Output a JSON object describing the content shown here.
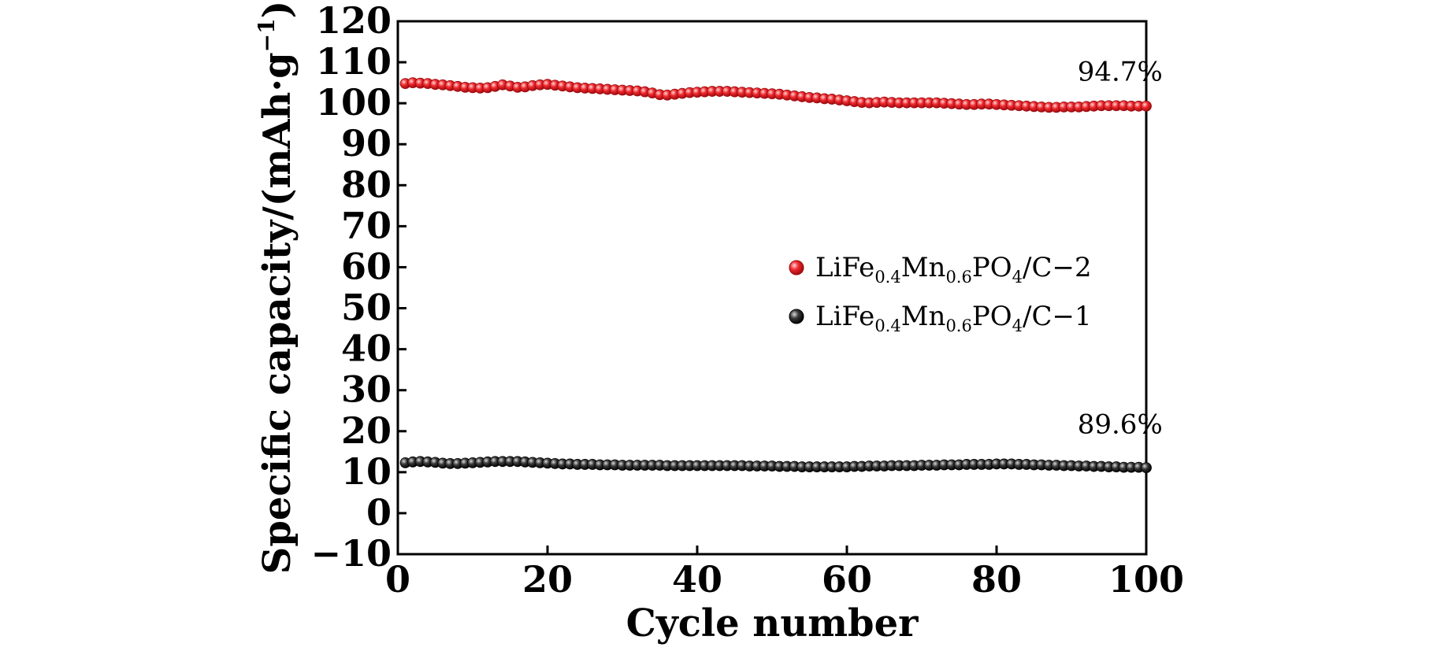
{
  "chart_data": {
    "type": "scatter",
    "xlabel": "Cycle number",
    "ylabel": {
      "main": "Specific capacity/(mAh",
      "dot": "·",
      "g": "g",
      "sup": "−1",
      "close": ")"
    },
    "xlim": [
      0,
      100
    ],
    "ylim": [
      -10,
      120
    ],
    "xticks": [
      "0",
      "20",
      "40",
      "60",
      "80",
      "100"
    ],
    "yticks": [
      "−10",
      "0",
      "10",
      "20",
      "30",
      "40",
      "50",
      "60",
      "70",
      "80",
      "90",
      "100",
      "110",
      "120"
    ],
    "grid": false,
    "legend_position": "right-middle",
    "series": [
      {
        "legend": {
          "a": "LiFe",
          "b": "0.4",
          "c": "Mn",
          "d": "0.6",
          "e": "PO",
          "f": "4",
          "g": "/C−2"
        },
        "color": "#e8151b",
        "x": [
          1,
          2,
          3,
          4,
          5,
          6,
          7,
          8,
          9,
          10,
          11,
          12,
          13,
          14,
          15,
          16,
          17,
          18,
          19,
          20,
          21,
          22,
          23,
          24,
          25,
          26,
          27,
          28,
          29,
          30,
          31,
          32,
          33,
          34,
          35,
          36,
          37,
          38,
          39,
          40,
          41,
          42,
          43,
          44,
          45,
          46,
          47,
          48,
          49,
          50,
          51,
          52,
          53,
          54,
          55,
          56,
          57,
          58,
          59,
          60,
          61,
          62,
          63,
          64,
          65,
          66,
          67,
          68,
          69,
          70,
          71,
          72,
          73,
          74,
          75,
          76,
          77,
          78,
          79,
          80,
          81,
          82,
          83,
          84,
          85,
          86,
          87,
          88,
          89,
          90,
          91,
          92,
          93,
          94,
          95,
          96,
          97,
          98,
          99,
          100
        ],
        "y": [
          104.8,
          105.0,
          104.9,
          104.8,
          104.6,
          104.5,
          104.3,
          104.1,
          103.9,
          103.8,
          103.7,
          103.8,
          104.1,
          104.5,
          104.2,
          103.9,
          104.0,
          104.3,
          104.5,
          104.6,
          104.4,
          104.2,
          104.0,
          103.8,
          103.7,
          103.6,
          103.5,
          103.4,
          103.3,
          103.2,
          103.1,
          103.0,
          102.8,
          102.5,
          102.1,
          102.0,
          102.2,
          102.4,
          102.6,
          102.7,
          102.8,
          102.9,
          102.9,
          102.9,
          102.8,
          102.7,
          102.6,
          102.5,
          102.4,
          102.3,
          102.2,
          102.0,
          101.8,
          101.6,
          101.4,
          101.3,
          101.1,
          101.0,
          100.8,
          100.6,
          100.4,
          100.2,
          100.1,
          100.2,
          100.3,
          100.2,
          100.1,
          100.1,
          100.1,
          100.1,
          100.1,
          100.1,
          100.0,
          99.9,
          99.8,
          99.7,
          99.7,
          99.8,
          99.8,
          99.7,
          99.6,
          99.5,
          99.4,
          99.3,
          99.2,
          99.1,
          99.0,
          99.0,
          99.1,
          99.1,
          99.1,
          99.2,
          99.3,
          99.4,
          99.4,
          99.4,
          99.4,
          99.3,
          99.3,
          99.3
        ]
      },
      {
        "legend": {
          "a": "LiFe",
          "b": "0.4",
          "c": "Mn",
          "d": "0.6",
          "e": "PO",
          "f": "4",
          "g": "/C−1"
        },
        "color": "#1a1a1a",
        "x": [
          1,
          2,
          3,
          4,
          5,
          6,
          7,
          8,
          9,
          10,
          11,
          12,
          13,
          14,
          15,
          16,
          17,
          18,
          19,
          20,
          21,
          22,
          23,
          24,
          25,
          26,
          27,
          28,
          29,
          30,
          31,
          32,
          33,
          34,
          35,
          36,
          37,
          38,
          39,
          40,
          41,
          42,
          43,
          44,
          45,
          46,
          47,
          48,
          49,
          50,
          51,
          52,
          53,
          54,
          55,
          56,
          57,
          58,
          59,
          60,
          61,
          62,
          63,
          64,
          65,
          66,
          67,
          68,
          69,
          70,
          71,
          72,
          73,
          74,
          75,
          76,
          77,
          78,
          79,
          80,
          81,
          82,
          83,
          84,
          85,
          86,
          87,
          88,
          89,
          90,
          91,
          92,
          93,
          94,
          95,
          96,
          97,
          98,
          99,
          100
        ],
        "y": [
          12.3,
          12.5,
          12.6,
          12.5,
          12.4,
          12.2,
          12.1,
          12.1,
          12.2,
          12.3,
          12.4,
          12.5,
          12.6,
          12.6,
          12.6,
          12.6,
          12.5,
          12.4,
          12.3,
          12.2,
          12.1,
          12.0,
          12.0,
          11.9,
          11.9,
          11.9,
          11.8,
          11.8,
          11.8,
          11.7,
          11.7,
          11.7,
          11.7,
          11.7,
          11.7,
          11.6,
          11.6,
          11.6,
          11.6,
          11.6,
          11.6,
          11.6,
          11.6,
          11.6,
          11.6,
          11.6,
          11.5,
          11.5,
          11.5,
          11.5,
          11.4,
          11.4,
          11.4,
          11.3,
          11.3,
          11.3,
          11.3,
          11.3,
          11.3,
          11.3,
          11.4,
          11.4,
          11.5,
          11.5,
          11.5,
          11.6,
          11.6,
          11.6,
          11.6,
          11.7,
          11.7,
          11.7,
          11.8,
          11.8,
          11.8,
          11.9,
          11.9,
          11.9,
          11.9,
          12.0,
          12.0,
          12.0,
          11.9,
          11.9,
          11.8,
          11.8,
          11.7,
          11.7,
          11.6,
          11.6,
          11.5,
          11.5,
          11.4,
          11.4,
          11.3,
          11.3,
          11.2,
          11.2,
          11.2,
          11.1
        ]
      }
    ],
    "annotations": [
      {
        "text": "94.7%",
        "x": 96.5,
        "y": 105.5
      },
      {
        "text": "89.6%",
        "x": 96.5,
        "y": 19.5
      }
    ]
  }
}
